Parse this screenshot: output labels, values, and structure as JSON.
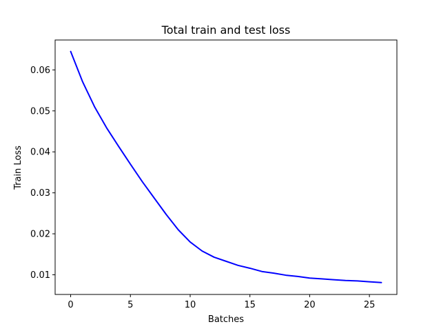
{
  "chart_data": {
    "type": "line",
    "title": "Total train and test loss",
    "xlabel": "Batches",
    "ylabel": "Train Loss",
    "xlim": [
      -1.3,
      27.3
    ],
    "ylim": [
      0.0052,
      0.0673
    ],
    "xticks": [
      0,
      5,
      10,
      15,
      20,
      25
    ],
    "yticks": [
      0.01,
      0.02,
      0.03,
      0.04,
      0.05,
      0.06
    ],
    "xtick_labels": [
      "0",
      "5",
      "10",
      "15",
      "20",
      "25"
    ],
    "ytick_labels": [
      "0.01",
      "0.02",
      "0.03",
      "0.04",
      "0.05",
      "0.06"
    ],
    "grid": false,
    "legend": "none",
    "series": [
      {
        "color": "#0000ff",
        "x": [
          0,
          1,
          2,
          3,
          4,
          5,
          6,
          7,
          8,
          9,
          10,
          11,
          12,
          13,
          14,
          15,
          16,
          17,
          18,
          19,
          20,
          21,
          22,
          23,
          24,
          25,
          26
        ],
        "y": [
          0.0645,
          0.0571,
          0.051,
          0.0459,
          0.0414,
          0.037,
          0.0327,
          0.0287,
          0.0247,
          0.021,
          0.018,
          0.0158,
          0.0143,
          0.0133,
          0.0123,
          0.0116,
          0.0108,
          0.0104,
          0.0099,
          0.0096,
          0.0092,
          0.009,
          0.0088,
          0.0086,
          0.0085,
          0.0083,
          0.0081
        ]
      }
    ]
  }
}
